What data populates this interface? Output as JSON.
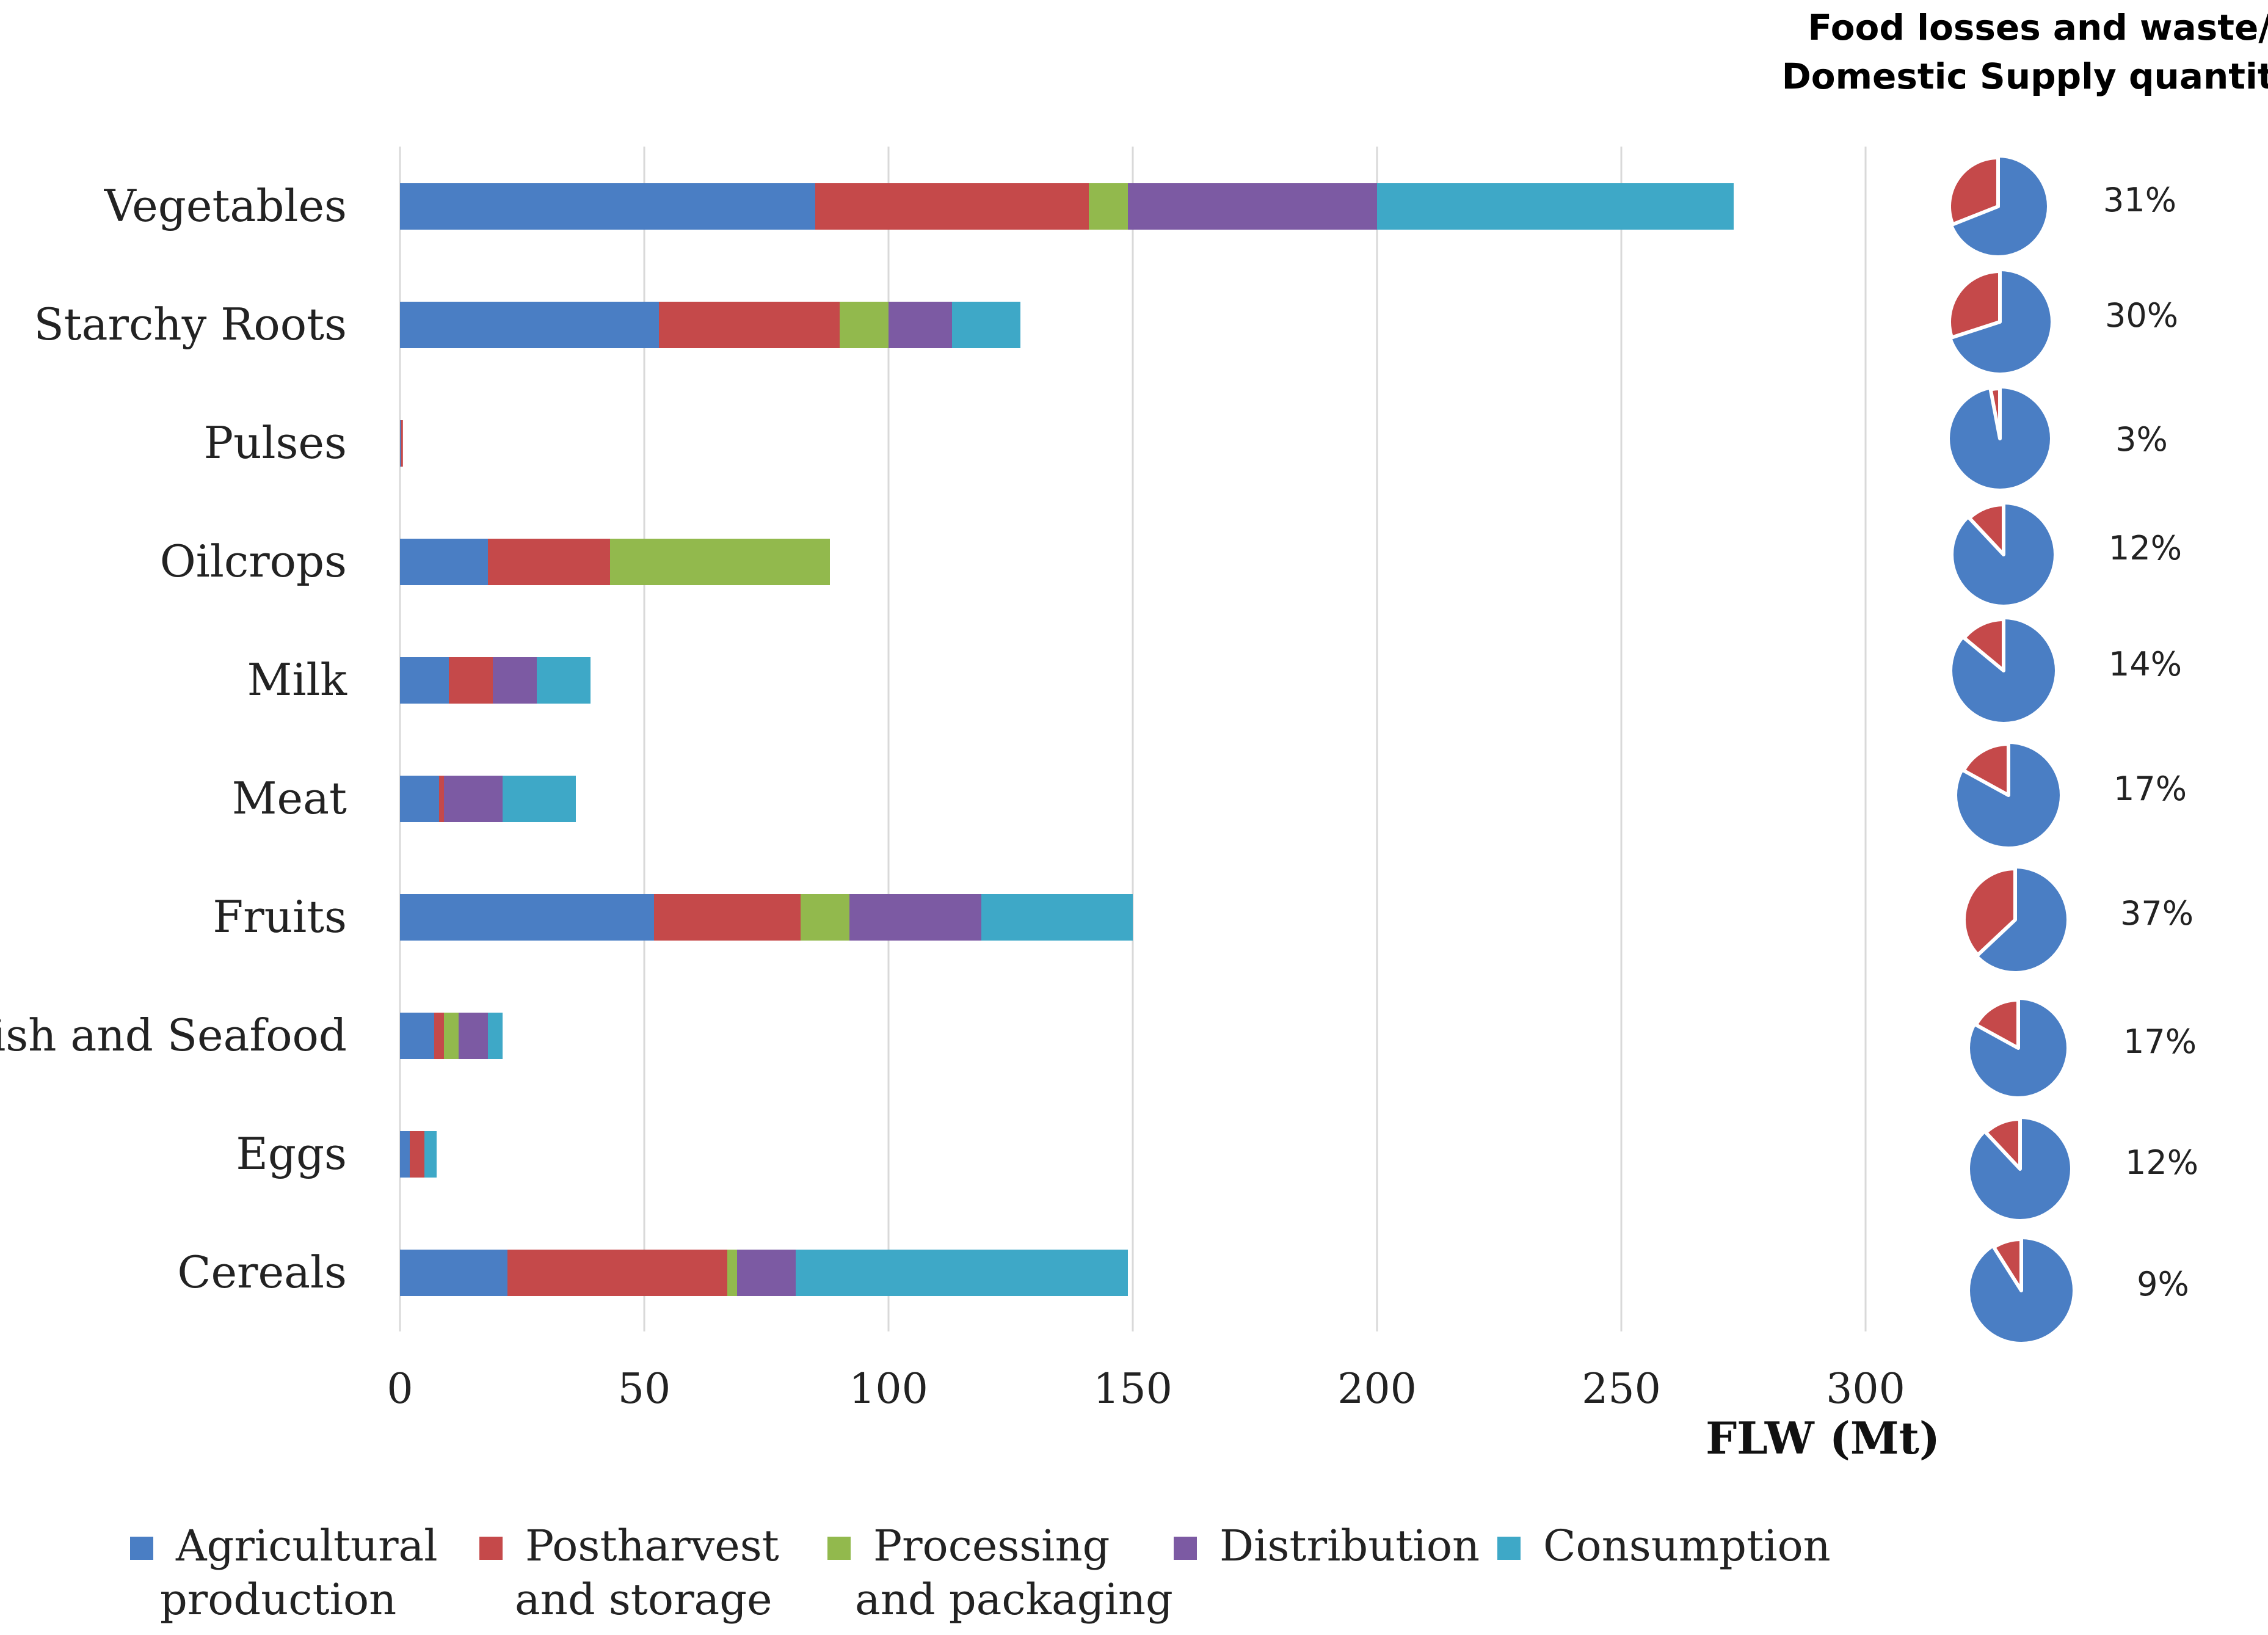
{
  "chart_data": {
    "type": "bar",
    "orientation": "horizontal",
    "stacked": true,
    "categories": [
      "Vegetables",
      "Starchy Roots",
      "Pulses",
      "Oilcrops",
      "Milk",
      "Meat",
      "Fruits",
      "Fish and Seafood",
      "Eggs",
      "Cereals"
    ],
    "series": [
      {
        "name": "Agricultural production",
        "label_lines": [
          "Agricultural",
          "production"
        ],
        "color": "#4a7ec4",
        "values": [
          85,
          53,
          0.2,
          18,
          10,
          8,
          52,
          7,
          2,
          22
        ]
      },
      {
        "name": "Postharvest and storage",
        "label_lines": [
          "Postharvest",
          "and storage"
        ],
        "color": "#c5494a",
        "values": [
          56,
          37,
          0.4,
          25,
          9,
          1,
          30,
          2,
          3,
          45
        ]
      },
      {
        "name": "Processing and packaging",
        "label_lines": [
          "Processing",
          "and packaging"
        ],
        "color": "#92b94d",
        "values": [
          8,
          10,
          0,
          45,
          0,
          0,
          10,
          3,
          0,
          2
        ]
      },
      {
        "name": "Distribution",
        "label_lines": [
          "Distribution"
        ],
        "color": "#7c5aa3",
        "values": [
          51,
          13,
          0,
          0,
          9,
          12,
          27,
          6,
          0,
          12
        ]
      },
      {
        "name": "Consumption",
        "label_lines": [
          "Consumption"
        ],
        "color": "#3ea8c7",
        "values": [
          73,
          14,
          0,
          0,
          11,
          15,
          31,
          3,
          2.5,
          68
        ]
      }
    ],
    "xlim": [
      0,
      300
    ],
    "xticks": [
      "0",
      "50",
      "100",
      "150",
      "200",
      "250",
      "300"
    ],
    "xlabel": "FLW (Mt)",
    "grid": true,
    "legend_position": "bottom",
    "pies": {
      "title_lines": [
        "Food losses and waste/",
        "Domestic Supply quantity"
      ],
      "loss_color": "#c5494a",
      "rest_color": "#4a7ec4",
      "values": [
        31,
        30,
        3,
        12,
        14,
        17,
        37,
        17,
        12,
        9
      ],
      "labels": [
        "31%",
        "30%",
        "3%",
        "12%",
        "14%",
        "17%",
        "37%",
        "17%",
        "12%",
        "9%"
      ]
    }
  }
}
